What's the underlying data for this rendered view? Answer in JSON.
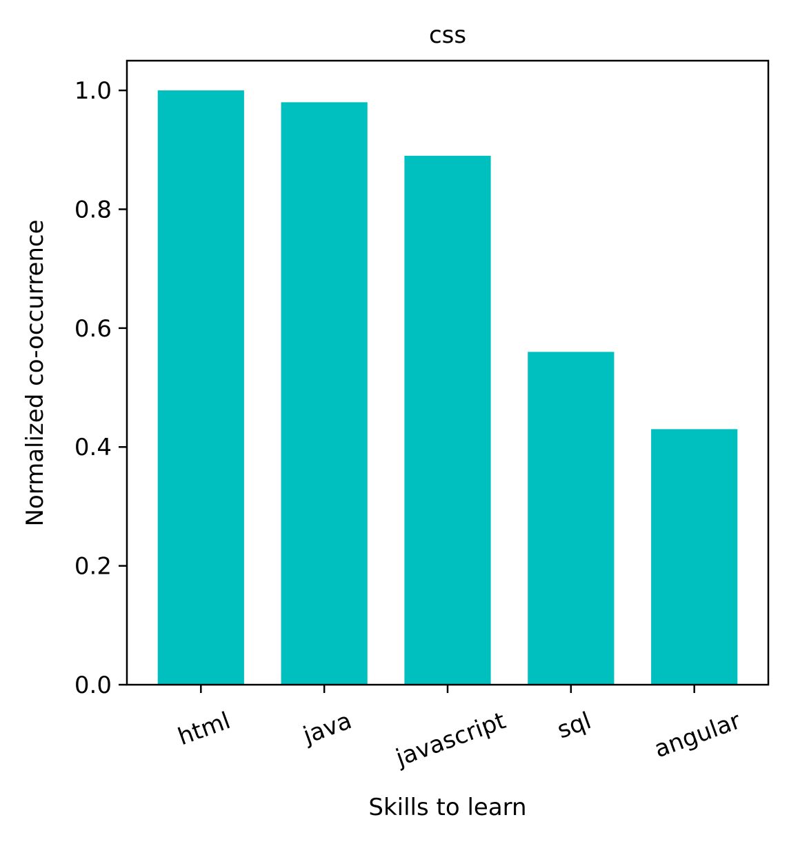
{
  "chart_data": {
    "type": "bar",
    "title": "css",
    "xlabel": "Skills to learn",
    "ylabel": "Normalized co-occurrence",
    "categories": [
      "html",
      "java",
      "javascript",
      "sql",
      "angular"
    ],
    "values": [
      1.0,
      0.98,
      0.89,
      0.56,
      0.43
    ],
    "ylim": [
      0,
      1.05
    ],
    "yticks": [
      0.0,
      0.2,
      0.4,
      0.6,
      0.8,
      1.0
    ],
    "ytick_labels": [
      "0.0",
      "0.2",
      "0.4",
      "0.6",
      "0.8",
      "1.0"
    ],
    "grid": false,
    "bar_color": "#00BFBF",
    "xtick_rotation_deg": 20
  }
}
